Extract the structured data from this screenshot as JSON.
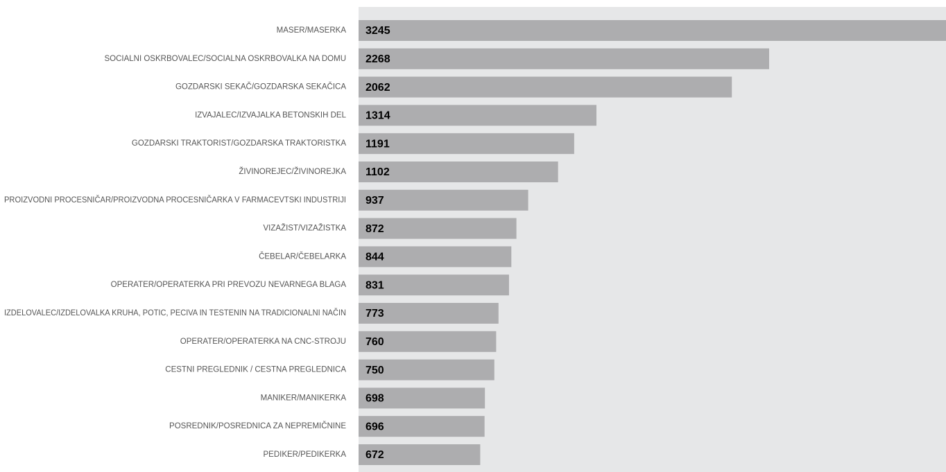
{
  "chart_data": {
    "type": "bar",
    "orientation": "horizontal",
    "color": "#adadaf",
    "background": "#e6e7e8",
    "categories": [
      "MASER/MASERKA",
      "SOCIALNI OSKRBOVALEC/SOCIALNA OSKRBOVALKA NA DOMU",
      "GOZDARSKI SEKAČ/GOZDARSKA SEKAČICA",
      "IZVAJALEC/IZVAJALKA BETONSKIH DEL",
      "GOZDARSKI TRAKTORIST/GOZDARSKA TRAKTORISTKA",
      "ŽIVINOREJEC/ŽIVINOREJKA",
      "PROIZVODNI PROCESNIČAR/PROIZVODNA PROCESNIČARKA V FARMACEVTSKI INDUSTRIJI",
      "VIZAŽIST/VIZAŽISTKA",
      "ČEBELAR/ČEBELARKA",
      "OPERATER/OPERATERKA PRI PREVOZU NEVARNEGA BLAGA",
      "IZDELOVALEC/IZDELOVALKA KRUHA, POTIC, PECIVA IN TESTENIN NA TRADICIONALNI NAČIN",
      "OPERATER/OPERATERKA NA CNC-STROJU",
      "CESTNI PREGLEDNIK / CESTNA PREGLEDNICA",
      "MANIKER/MANIKERKA",
      "POSREDNIK/POSREDNICA ZA NEPREMIČNINE",
      "PEDIKER/PEDIKERKA"
    ],
    "values": [
      3245,
      2268,
      2062,
      1314,
      1191,
      1102,
      937,
      872,
      844,
      831,
      773,
      760,
      750,
      698,
      696,
      672
    ]
  }
}
